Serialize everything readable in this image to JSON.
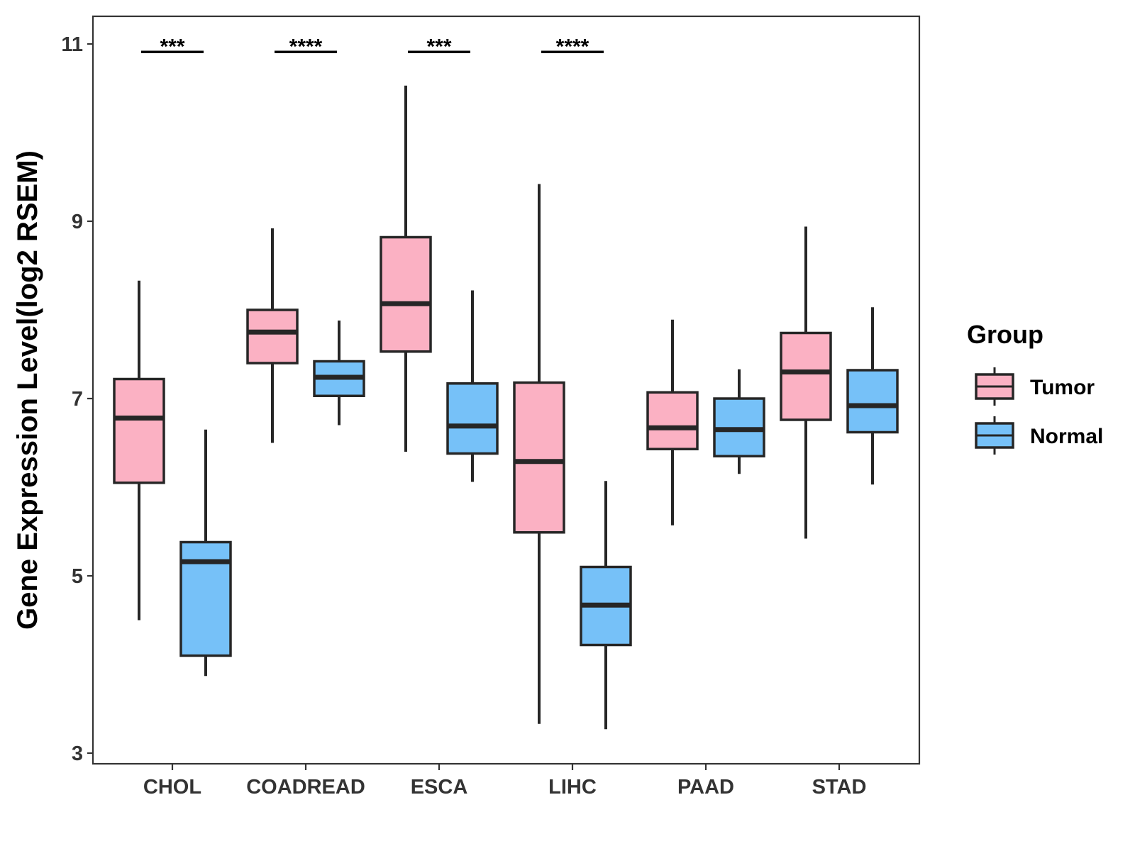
{
  "chart_data": {
    "type": "boxplot",
    "title": "",
    "xlabel": "",
    "ylabel": "Gene Expression Level(log2 RSEM)",
    "ylim": [
      2.8,
      11.3
    ],
    "yticks": [
      3,
      5,
      7,
      9,
      11
    ],
    "grid": false,
    "legend": {
      "title": "Group",
      "placement": "right",
      "entries": [
        {
          "name": "Tumor",
          "color": "#FBB1C3"
        },
        {
          "name": "Normal",
          "color": "#76C1F8"
        }
      ]
    },
    "categories": [
      "CHOL",
      "COADREAD",
      "ESCA",
      "LIHC",
      "PAAD",
      "STAD"
    ],
    "series": [
      {
        "name": "Tumor",
        "color": "#FBB1C3",
        "boxes": [
          {
            "min": 4.5,
            "q1": 6.05,
            "median": 6.78,
            "q3": 7.22,
            "max": 8.33
          },
          {
            "min": 6.5,
            "q1": 7.4,
            "median": 7.75,
            "q3": 8.0,
            "max": 8.92
          },
          {
            "min": 6.4,
            "q1": 7.53,
            "median": 8.07,
            "q3": 8.82,
            "max": 10.53
          },
          {
            "min": 3.33,
            "q1": 5.49,
            "median": 6.29,
            "q3": 7.18,
            "max": 9.42
          },
          {
            "min": 5.57,
            "q1": 6.43,
            "median": 6.67,
            "q3": 7.07,
            "max": 7.89
          },
          {
            "min": 5.42,
            "q1": 6.76,
            "median": 7.3,
            "q3": 7.74,
            "max": 8.94
          }
        ]
      },
      {
        "name": "Normal",
        "color": "#76C1F8",
        "boxes": [
          {
            "min": 3.87,
            "q1": 4.1,
            "median": 5.16,
            "q3": 5.38,
            "max": 6.65
          },
          {
            "min": 6.7,
            "q1": 7.03,
            "median": 7.24,
            "q3": 7.42,
            "max": 7.88
          },
          {
            "min": 6.06,
            "q1": 6.38,
            "median": 6.69,
            "q3": 7.17,
            "max": 8.22
          },
          {
            "min": 3.27,
            "q1": 4.22,
            "median": 4.67,
            "q3": 5.1,
            "max": 6.07
          },
          {
            "min": 6.15,
            "q1": 6.35,
            "median": 6.65,
            "q3": 7.0,
            "max": 7.33
          },
          {
            "min": 6.03,
            "q1": 6.62,
            "median": 6.92,
            "q3": 7.32,
            "max": 8.03
          }
        ]
      }
    ],
    "significance": [
      {
        "category": "CHOL",
        "label": "***",
        "y": 10.91
      },
      {
        "category": "COADREAD",
        "label": "****",
        "y": 10.91
      },
      {
        "category": "ESCA",
        "label": "***",
        "y": 10.91
      },
      {
        "category": "LIHC",
        "label": "****",
        "y": 10.91
      }
    ]
  }
}
